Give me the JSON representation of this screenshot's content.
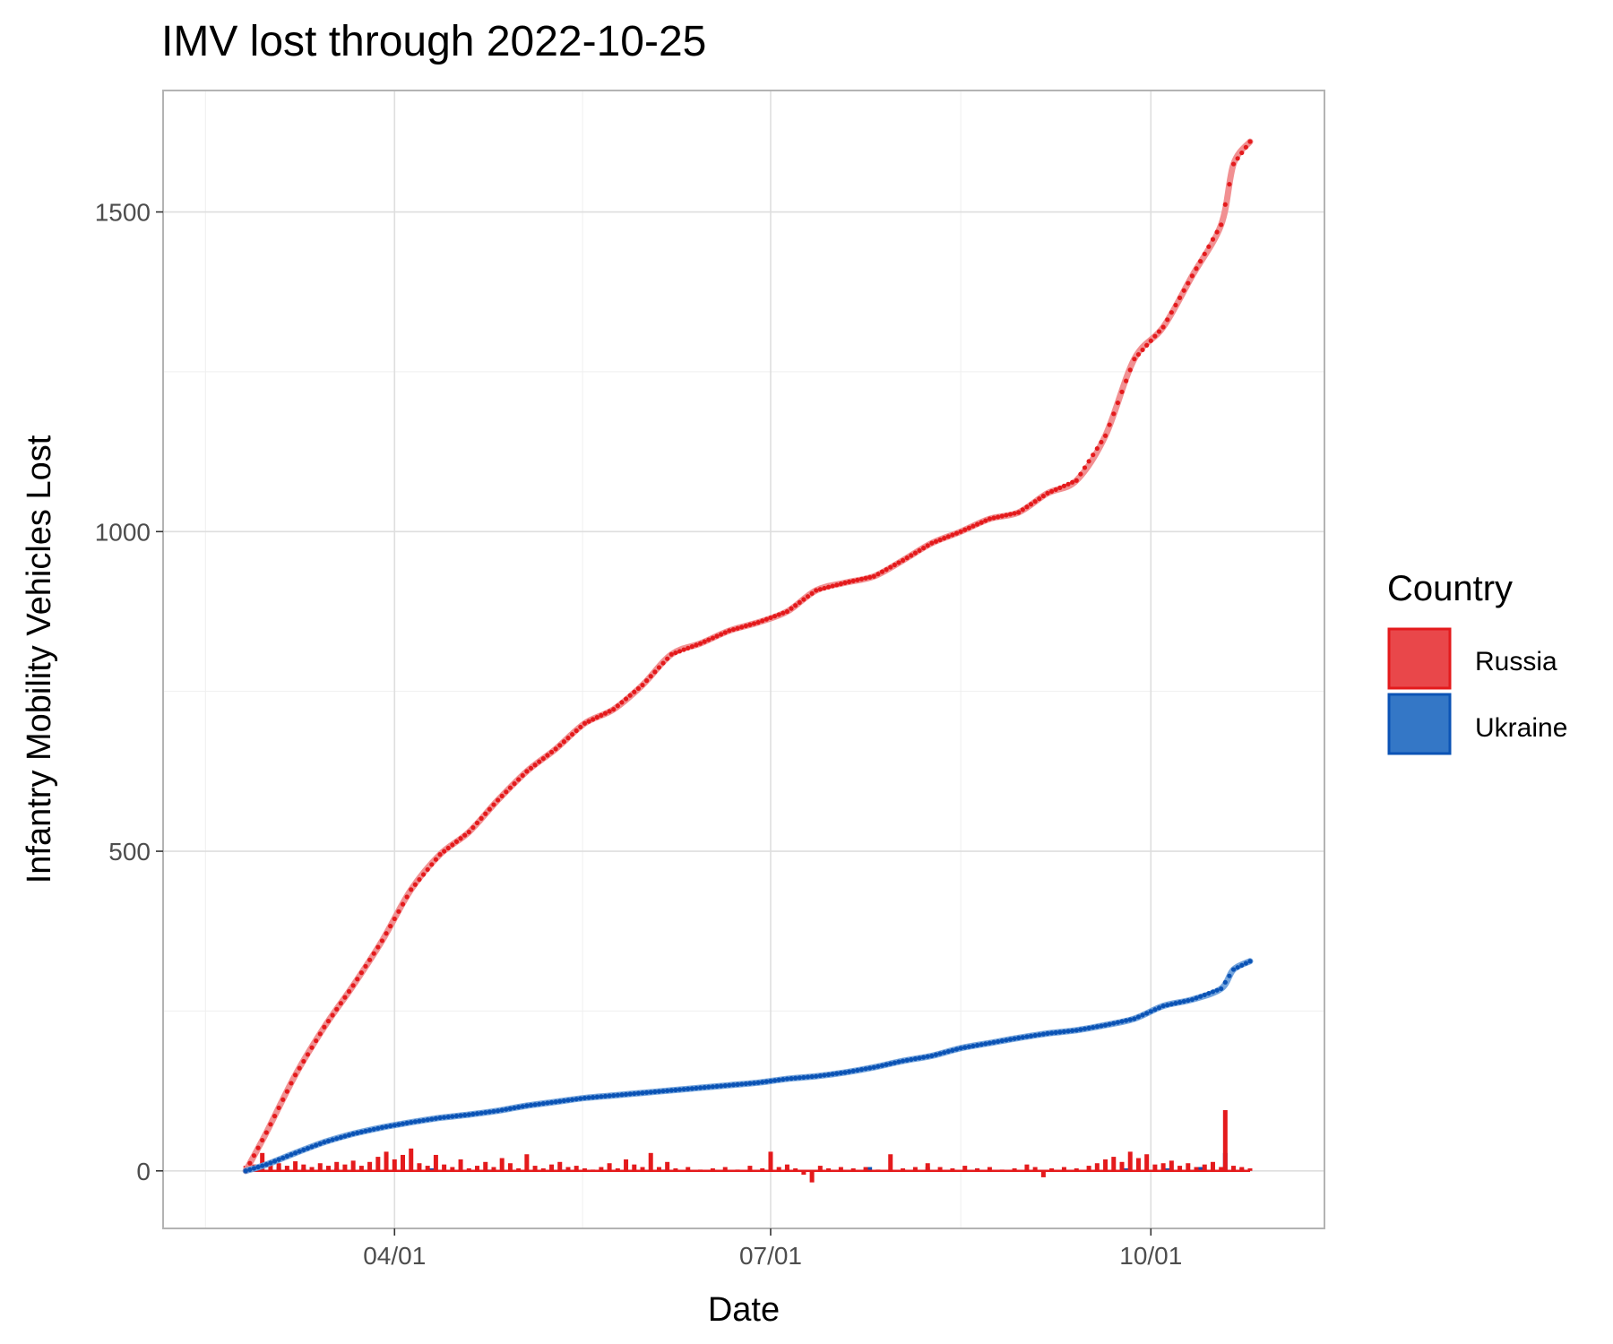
{
  "chart_data": {
    "type": "line",
    "title": "IMV lost through 2022-10-25",
    "xlabel": "Date",
    "ylabel": "Infantry Mobility Vehicles Lost",
    "x_range": [
      "2022-02-04",
      "2022-11-12"
    ],
    "ylim": [
      -90,
      1690
    ],
    "x_ticks": [
      {
        "date": "2022-04-01",
        "label": "04/01"
      },
      {
        "date": "2022-07-01",
        "label": "07/01"
      },
      {
        "date": "2022-10-01",
        "label": "10/01"
      }
    ],
    "y_ticks": [
      0,
      500,
      1000,
      1500
    ],
    "grid": true,
    "legend": {
      "title": "Country",
      "position": "right"
    },
    "series": [
      {
        "name": "Russia",
        "color": "#e41a1c",
        "smooth_color": "#f08a8c",
        "cumulative": [
          [
            "2022-02-24",
            0
          ],
          [
            "2022-03-01",
            60
          ],
          [
            "2022-03-08",
            150
          ],
          [
            "2022-03-15",
            225
          ],
          [
            "2022-03-22",
            290
          ],
          [
            "2022-03-29",
            360
          ],
          [
            "2022-04-05",
            440
          ],
          [
            "2022-04-12",
            495
          ],
          [
            "2022-04-19",
            530
          ],
          [
            "2022-04-26",
            580
          ],
          [
            "2022-05-03",
            625
          ],
          [
            "2022-05-10",
            660
          ],
          [
            "2022-05-17",
            700
          ],
          [
            "2022-05-24",
            722
          ],
          [
            "2022-05-31",
            760
          ],
          [
            "2022-06-07",
            808
          ],
          [
            "2022-06-14",
            825
          ],
          [
            "2022-06-21",
            845
          ],
          [
            "2022-06-28",
            858
          ],
          [
            "2022-07-05",
            875
          ],
          [
            "2022-07-12",
            908
          ],
          [
            "2022-07-19",
            920
          ],
          [
            "2022-07-26",
            930
          ],
          [
            "2022-08-02",
            955
          ],
          [
            "2022-08-09",
            982
          ],
          [
            "2022-08-16",
            1000
          ],
          [
            "2022-08-23",
            1020
          ],
          [
            "2022-08-30",
            1030
          ],
          [
            "2022-09-06",
            1060
          ],
          [
            "2022-09-13",
            1080
          ],
          [
            "2022-09-20",
            1150
          ],
          [
            "2022-09-27",
            1270
          ],
          [
            "2022-10-04",
            1320
          ],
          [
            "2022-10-11",
            1400
          ],
          [
            "2022-10-18",
            1480
          ],
          [
            "2022-10-21",
            1575
          ],
          [
            "2022-10-25",
            1610
          ]
        ],
        "daily": [
          [
            "2022-02-24",
            8
          ],
          [
            "2022-02-26",
            10
          ],
          [
            "2022-02-28",
            28
          ],
          [
            "2022-03-02",
            15
          ],
          [
            "2022-03-04",
            12
          ],
          [
            "2022-03-06",
            8
          ],
          [
            "2022-03-08",
            15
          ],
          [
            "2022-03-10",
            10
          ],
          [
            "2022-03-12",
            6
          ],
          [
            "2022-03-14",
            12
          ],
          [
            "2022-03-16",
            8
          ],
          [
            "2022-03-18",
            14
          ],
          [
            "2022-03-20",
            10
          ],
          [
            "2022-03-22",
            16
          ],
          [
            "2022-03-24",
            8
          ],
          [
            "2022-03-26",
            14
          ],
          [
            "2022-03-28",
            22
          ],
          [
            "2022-03-30",
            30
          ],
          [
            "2022-04-01",
            18
          ],
          [
            "2022-04-03",
            25
          ],
          [
            "2022-04-05",
            35
          ],
          [
            "2022-04-07",
            12
          ],
          [
            "2022-04-09",
            8
          ],
          [
            "2022-04-11",
            25
          ],
          [
            "2022-04-13",
            10
          ],
          [
            "2022-04-15",
            6
          ],
          [
            "2022-04-17",
            18
          ],
          [
            "2022-04-19",
            4
          ],
          [
            "2022-04-21",
            8
          ],
          [
            "2022-04-23",
            14
          ],
          [
            "2022-04-25",
            6
          ],
          [
            "2022-04-27",
            20
          ],
          [
            "2022-04-29",
            12
          ],
          [
            "2022-05-01",
            4
          ],
          [
            "2022-05-03",
            26
          ],
          [
            "2022-05-05",
            8
          ],
          [
            "2022-05-07",
            4
          ],
          [
            "2022-05-09",
            10
          ],
          [
            "2022-05-11",
            14
          ],
          [
            "2022-05-13",
            6
          ],
          [
            "2022-05-15",
            8
          ],
          [
            "2022-05-17",
            4
          ],
          [
            "2022-05-19",
            2
          ],
          [
            "2022-05-21",
            6
          ],
          [
            "2022-05-23",
            12
          ],
          [
            "2022-05-25",
            4
          ],
          [
            "2022-05-27",
            18
          ],
          [
            "2022-05-29",
            10
          ],
          [
            "2022-05-31",
            6
          ],
          [
            "2022-06-02",
            28
          ],
          [
            "2022-06-04",
            6
          ],
          [
            "2022-06-06",
            14
          ],
          [
            "2022-06-08",
            4
          ],
          [
            "2022-06-11",
            6
          ],
          [
            "2022-06-14",
            2
          ],
          [
            "2022-06-17",
            4
          ],
          [
            "2022-06-20",
            6
          ],
          [
            "2022-06-23",
            2
          ],
          [
            "2022-06-26",
            8
          ],
          [
            "2022-06-29",
            4
          ],
          [
            "2022-07-01",
            30
          ],
          [
            "2022-07-03",
            6
          ],
          [
            "2022-07-05",
            10
          ],
          [
            "2022-07-07",
            4
          ],
          [
            "2022-07-09",
            -6
          ],
          [
            "2022-07-11",
            -18
          ],
          [
            "2022-07-13",
            8
          ],
          [
            "2022-07-15",
            4
          ],
          [
            "2022-07-18",
            6
          ],
          [
            "2022-07-21",
            4
          ],
          [
            "2022-07-24",
            6
          ],
          [
            "2022-07-27",
            2
          ],
          [
            "2022-07-30",
            26
          ],
          [
            "2022-08-02",
            4
          ],
          [
            "2022-08-05",
            6
          ],
          [
            "2022-08-08",
            12
          ],
          [
            "2022-08-11",
            6
          ],
          [
            "2022-08-14",
            4
          ],
          [
            "2022-08-17",
            8
          ],
          [
            "2022-08-20",
            4
          ],
          [
            "2022-08-23",
            6
          ],
          [
            "2022-08-26",
            2
          ],
          [
            "2022-08-29",
            4
          ],
          [
            "2022-09-01",
            10
          ],
          [
            "2022-09-03",
            6
          ],
          [
            "2022-09-05",
            -10
          ],
          [
            "2022-09-07",
            4
          ],
          [
            "2022-09-10",
            6
          ],
          [
            "2022-09-13",
            4
          ],
          [
            "2022-09-16",
            8
          ],
          [
            "2022-09-18",
            12
          ],
          [
            "2022-09-20",
            18
          ],
          [
            "2022-09-22",
            22
          ],
          [
            "2022-09-24",
            14
          ],
          [
            "2022-09-26",
            30
          ],
          [
            "2022-09-28",
            20
          ],
          [
            "2022-09-30",
            26
          ],
          [
            "2022-10-02",
            10
          ],
          [
            "2022-10-04",
            12
          ],
          [
            "2022-10-06",
            16
          ],
          [
            "2022-10-08",
            8
          ],
          [
            "2022-10-10",
            12
          ],
          [
            "2022-10-12",
            6
          ],
          [
            "2022-10-14",
            10
          ],
          [
            "2022-10-16",
            14
          ],
          [
            "2022-10-18",
            6
          ],
          [
            "2022-10-19",
            95
          ],
          [
            "2022-10-21",
            8
          ],
          [
            "2022-10-23",
            6
          ],
          [
            "2022-10-25",
            4
          ]
        ]
      },
      {
        "name": "Ukraine",
        "color": "#0b53b5",
        "smooth_color": "#6d9fda",
        "cumulative": [
          [
            "2022-02-24",
            0
          ],
          [
            "2022-03-01",
            10
          ],
          [
            "2022-03-08",
            28
          ],
          [
            "2022-03-15",
            45
          ],
          [
            "2022-03-22",
            58
          ],
          [
            "2022-03-29",
            68
          ],
          [
            "2022-04-05",
            76
          ],
          [
            "2022-04-12",
            83
          ],
          [
            "2022-04-19",
            88
          ],
          [
            "2022-04-26",
            94
          ],
          [
            "2022-05-03",
            102
          ],
          [
            "2022-05-10",
            108
          ],
          [
            "2022-05-17",
            114
          ],
          [
            "2022-05-24",
            118
          ],
          [
            "2022-05-31",
            122
          ],
          [
            "2022-06-07",
            126
          ],
          [
            "2022-06-14",
            130
          ],
          [
            "2022-06-21",
            134
          ],
          [
            "2022-06-28",
            138
          ],
          [
            "2022-07-05",
            144
          ],
          [
            "2022-07-12",
            148
          ],
          [
            "2022-07-19",
            154
          ],
          [
            "2022-07-26",
            162
          ],
          [
            "2022-08-02",
            172
          ],
          [
            "2022-08-09",
            180
          ],
          [
            "2022-08-16",
            192
          ],
          [
            "2022-08-23",
            200
          ],
          [
            "2022-08-30",
            208
          ],
          [
            "2022-09-06",
            215
          ],
          [
            "2022-09-13",
            220
          ],
          [
            "2022-09-20",
            228
          ],
          [
            "2022-09-27",
            238
          ],
          [
            "2022-10-04",
            258
          ],
          [
            "2022-10-11",
            268
          ],
          [
            "2022-10-18",
            285
          ],
          [
            "2022-10-21",
            315
          ],
          [
            "2022-10-25",
            328
          ]
        ],
        "daily": [
          [
            "2022-02-26",
            4
          ],
          [
            "2022-03-04",
            6
          ],
          [
            "2022-03-10",
            4
          ],
          [
            "2022-03-18",
            4
          ],
          [
            "2022-03-28",
            2
          ],
          [
            "2022-04-10",
            4
          ],
          [
            "2022-04-24",
            2
          ],
          [
            "2022-05-12",
            2
          ],
          [
            "2022-06-05",
            2
          ],
          [
            "2022-07-05",
            4
          ],
          [
            "2022-07-25",
            6
          ],
          [
            "2022-08-08",
            6
          ],
          [
            "2022-08-20",
            4
          ],
          [
            "2022-09-01",
            2
          ],
          [
            "2022-09-25",
            4
          ],
          [
            "2022-10-05",
            4
          ],
          [
            "2022-10-13",
            6
          ],
          [
            "2022-10-19",
            28
          ],
          [
            "2022-10-23",
            4
          ]
        ]
      }
    ]
  }
}
